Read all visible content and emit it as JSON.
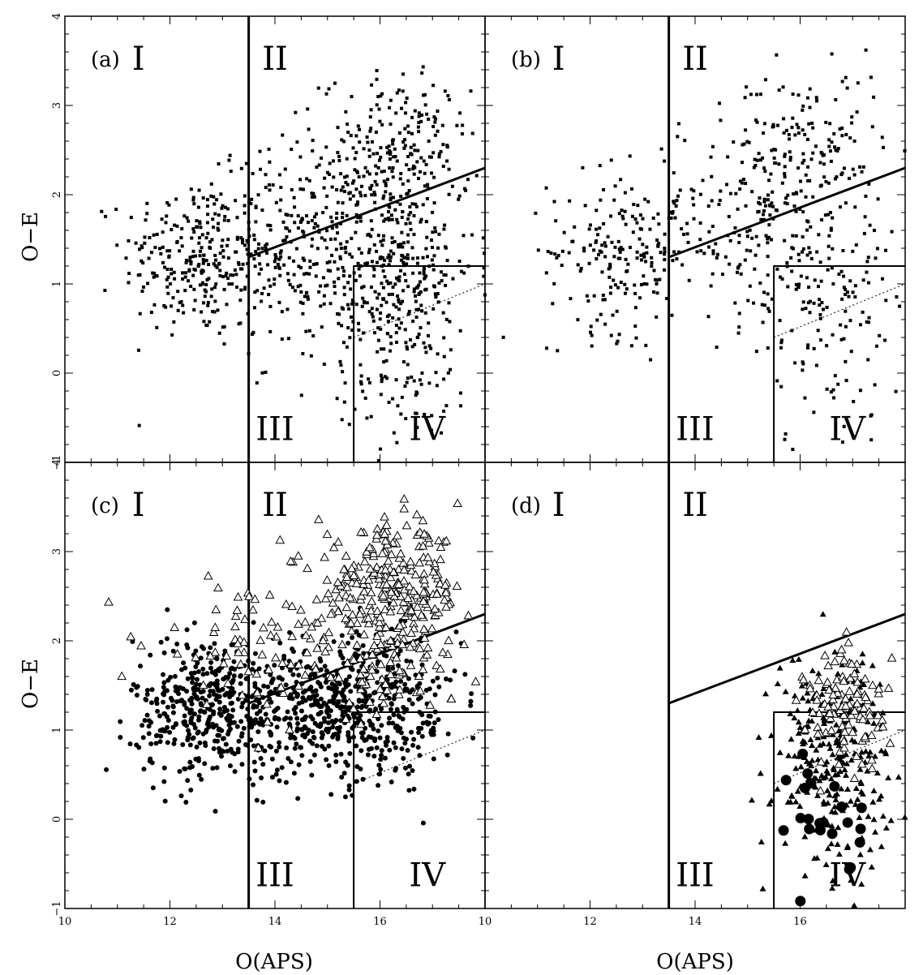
{
  "figure": {
    "xlabel_left": "O(APS)",
    "xlabel_right": "O(APS)",
    "ylabel_top": "O−E",
    "ylabel_bottom": "O−E"
  },
  "chart_data": [
    {
      "type": "scatter",
      "panel": "(a)",
      "xlim": [
        10,
        18
      ],
      "ylim": [
        -1,
        4
      ],
      "region_labels": [
        "I",
        "II",
        "III",
        "IV"
      ],
      "series": [
        {
          "marker": "filled-square",
          "clusters": [
            {
              "center": [
                12.5,
                1.3
              ],
              "spread": [
                0.7,
                0.45
              ],
              "count": 260
            },
            {
              "center": [
                14.5,
                1.4
              ],
              "spread": [
                0.9,
                0.6
              ],
              "count": 260
            },
            {
              "center": [
                16.3,
                2.45
              ],
              "spread": [
                0.7,
                0.45
              ],
              "count": 240
            },
            {
              "center": [
                16.2,
                1.2
              ],
              "spread": [
                0.8,
                0.5
              ],
              "count": 260
            },
            {
              "center": [
                16.4,
                0.3
              ],
              "spread": [
                0.7,
                0.6
              ],
              "count": 140
            }
          ]
        }
      ]
    },
    {
      "type": "scatter",
      "panel": "(b)",
      "xlim": [
        10,
        18
      ],
      "ylim": [
        -1,
        4
      ],
      "region_labels": [
        "I",
        "II",
        "III",
        "IV"
      ],
      "series": [
        {
          "marker": "filled-square",
          "clusters": [
            {
              "center": [
                12.6,
                1.35
              ],
              "spread": [
                0.7,
                0.45
              ],
              "count": 190
            },
            {
              "center": [
                14.8,
                1.7
              ],
              "spread": [
                0.9,
                0.6
              ],
              "count": 160
            },
            {
              "center": [
                16.2,
                2.5
              ],
              "spread": [
                0.7,
                0.45
              ],
              "count": 150
            },
            {
              "center": [
                16.4,
                1.1
              ],
              "spread": [
                0.7,
                0.5
              ],
              "count": 120
            },
            {
              "center": [
                16.5,
                0.1
              ],
              "spread": [
                0.6,
                0.5
              ],
              "count": 40
            }
          ]
        }
      ]
    },
    {
      "type": "scatter",
      "panel": "(c)",
      "xlim": [
        10,
        18
      ],
      "ylim": [
        -1,
        4
      ],
      "region_labels": [
        "I",
        "II",
        "III",
        "IV"
      ],
      "series": [
        {
          "marker": "filled-circle",
          "clusters": [
            {
              "center": [
                12.8,
                1.25
              ],
              "spread": [
                0.75,
                0.4
              ],
              "count": 420
            },
            {
              "center": [
                15.0,
                1.25
              ],
              "spread": [
                0.9,
                0.4
              ],
              "count": 420
            },
            {
              "center": [
                16.3,
                1.2
              ],
              "spread": [
                0.6,
                0.4
              ],
              "count": 160
            }
          ]
        },
        {
          "marker": "open-triangle",
          "clusters": [
            {
              "center": [
                16.2,
                2.55
              ],
              "spread": [
                0.7,
                0.35
              ],
              "count": 280
            },
            {
              "center": [
                13.5,
                2.0
              ],
              "spread": [
                0.9,
                0.35
              ],
              "count": 70
            },
            {
              "center": [
                16.0,
                1.7
              ],
              "spread": [
                0.7,
                0.3
              ],
              "count": 80
            }
          ]
        }
      ]
    },
    {
      "type": "scatter",
      "panel": "(d)",
      "xlim": [
        10,
        18
      ],
      "ylim": [
        -1,
        4
      ],
      "region_labels": [
        "I",
        "II",
        "III",
        "IV"
      ],
      "series": [
        {
          "marker": "filled-triangle",
          "clusters": [
            {
              "center": [
                16.6,
                0.7
              ],
              "spread": [
                0.55,
                0.6
              ],
              "count": 260
            }
          ]
        },
        {
          "marker": "open-triangle",
          "clusters": [
            {
              "center": [
                16.9,
                1.25
              ],
              "spread": [
                0.4,
                0.35
              ],
              "count": 110
            }
          ]
        },
        {
          "marker": "large-filled-circle",
          "clusters": [
            {
              "center": [
                16.5,
                0.05
              ],
              "spread": [
                0.35,
                0.35
              ],
              "count": 22
            }
          ]
        }
      ]
    }
  ],
  "reference_lines": {
    "vertical_I_II": 13.5,
    "diagonal": [
      [
        13.5,
        1.3
      ],
      [
        18,
        2.3
      ]
    ],
    "box_top_y": 1.2,
    "box_left_x": 15.5,
    "dotted": [
      [
        15.5,
        0.4
      ],
      [
        18,
        1.0
      ]
    ]
  },
  "ticks": {
    "x_labels": [
      "10",
      "12",
      "14",
      "16"
    ],
    "x_labels_right": [
      "10",
      "12",
      "14",
      "16"
    ],
    "y_labels": [
      "−1",
      "0",
      "1",
      "2",
      "3",
      "4"
    ]
  }
}
